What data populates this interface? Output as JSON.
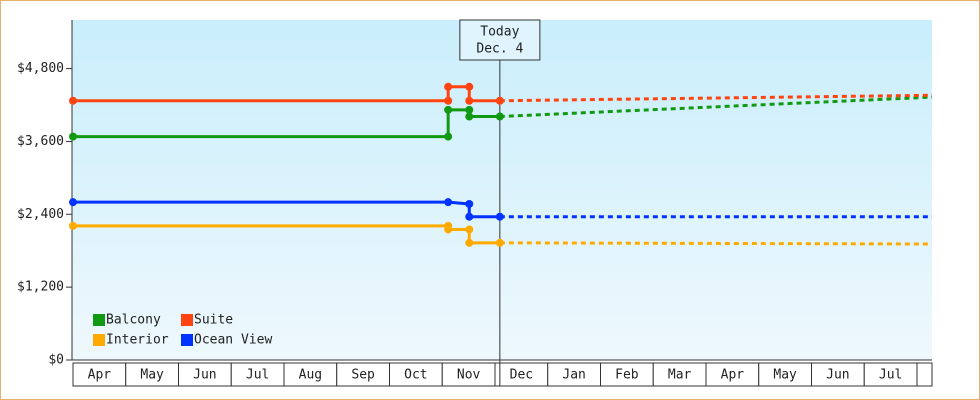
{
  "chart_data": {
    "type": "line",
    "categories": [
      "Apr",
      "May",
      "Jun",
      "Jul",
      "Aug",
      "Sep",
      "Oct",
      "Nov",
      "Dec",
      "Jan",
      "Feb",
      "Mar",
      "Apr",
      "May",
      "Jun",
      "Jul"
    ],
    "xlim": [
      0,
      16.28
    ],
    "ylim": [
      0,
      5600
    ],
    "yticks": [
      {
        "value": 0,
        "label": "$0"
      },
      {
        "value": 1200,
        "label": "$1,200"
      },
      {
        "value": 2400,
        "label": "$2,400"
      },
      {
        "value": 3600,
        "label": "$3,600"
      },
      {
        "value": 4800,
        "label": "$4,800"
      }
    ],
    "today": {
      "x": 8.09,
      "label": "Today",
      "date": "Dec. 4"
    },
    "legend": "lower left",
    "series": [
      {
        "name": "Balcony",
        "color": "#119911",
        "x": [
          0,
          7.11,
          7.11,
          7.51,
          7.51,
          8.09,
          16.28
        ],
        "values": [
          3680,
          3680,
          4120,
          4120,
          4010,
          4010,
          4330
        ]
      },
      {
        "name": "Suite",
        "color": "#ff4411",
        "x": [
          0,
          7.11,
          7.11,
          7.51,
          7.51,
          8.09,
          16.28
        ],
        "values": [
          4270,
          4270,
          4500,
          4500,
          4270,
          4270,
          4360
        ]
      },
      {
        "name": "Interior",
        "color": "#ffaa00",
        "x": [
          0,
          7.11,
          7.11,
          7.51,
          7.51,
          8.09,
          16.28
        ],
        "values": [
          2210,
          2210,
          2150,
          2150,
          1930,
          1930,
          1910
        ]
      },
      {
        "name": "Ocean View",
        "color": "#0033ff",
        "x": [
          0,
          7.11,
          7.51,
          7.51,
          8.09,
          16.28
        ],
        "values": [
          2600,
          2600,
          2570,
          2360,
          2360,
          2360
        ]
      }
    ]
  }
}
